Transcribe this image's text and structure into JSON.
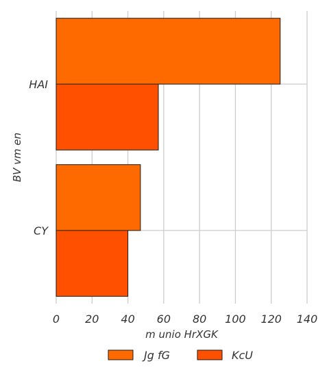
{
  "chart_data": {
    "type": "bar",
    "orientation": "horizontal",
    "categories": [
      "HAI",
      "CY"
    ],
    "series": [
      {
        "name": "Jg fG",
        "values": [
          125,
          47
        ],
        "color": "#ff6a00"
      },
      {
        "name": "KcU",
        "values": [
          57,
          40
        ],
        "color": "#ff5000"
      }
    ],
    "xlabel": "m unio HrXGK",
    "ylabel": "BV vm en",
    "xlim": [
      0,
      140
    ],
    "xticks": [
      0,
      20,
      40,
      60,
      80,
      100,
      120,
      140
    ],
    "grid": true,
    "legend_position": "bottom-center"
  }
}
